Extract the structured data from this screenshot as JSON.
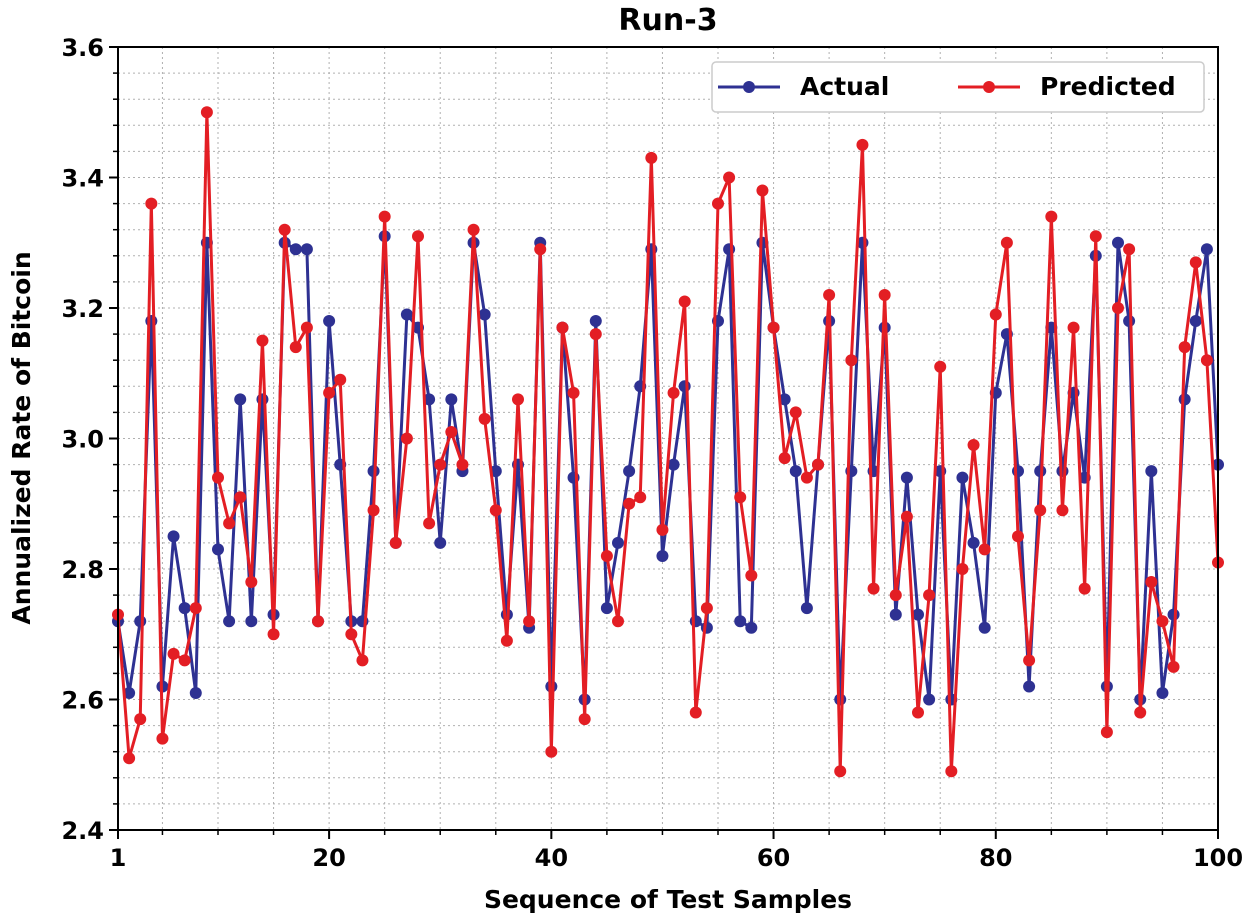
{
  "chart_data": {
    "type": "line",
    "title": "Run-3",
    "xlabel": "Sequence of Test Samples",
    "ylabel": "Annualized Rate of Bitcoin",
    "xlim": [
      1,
      100
    ],
    "ylim": [
      2.4,
      3.6
    ],
    "xticks": [
      1,
      20,
      40,
      60,
      80,
      100
    ],
    "xtick_labels": [
      "1",
      "20",
      "40",
      "60",
      "80",
      "100"
    ],
    "yticks": [
      2.4,
      2.6,
      2.8,
      3.0,
      3.2,
      3.4,
      3.6
    ],
    "ytick_labels": [
      "2.4",
      "2.6",
      "2.8",
      "3.0",
      "3.2",
      "3.4",
      "3.6"
    ],
    "grid": true,
    "legend_position": "top-right",
    "x": [
      1,
      2,
      3,
      4,
      5,
      6,
      7,
      8,
      9,
      10,
      11,
      12,
      13,
      14,
      15,
      16,
      17,
      18,
      19,
      20,
      21,
      22,
      23,
      24,
      25,
      26,
      27,
      28,
      29,
      30,
      31,
      32,
      33,
      34,
      35,
      36,
      37,
      38,
      39,
      40,
      41,
      42,
      43,
      44,
      45,
      46,
      47,
      48,
      49,
      50,
      51,
      52,
      53,
      54,
      55,
      56,
      57,
      58,
      59,
      60,
      61,
      62,
      63,
      64,
      65,
      66,
      67,
      68,
      69,
      70,
      71,
      72,
      73,
      74,
      75,
      76,
      77,
      78,
      79,
      80,
      81,
      82,
      83,
      84,
      85,
      86,
      87,
      88,
      89,
      90,
      91,
      92,
      93,
      94,
      95,
      96,
      97,
      98,
      99,
      100
    ],
    "series": [
      {
        "name": "Actual",
        "color": "#2e3192",
        "values": [
          2.72,
          2.61,
          2.72,
          3.18,
          2.62,
          2.85,
          2.74,
          2.61,
          3.3,
          2.83,
          2.72,
          3.06,
          2.72,
          3.06,
          2.73,
          3.3,
          3.29,
          3.29,
          2.72,
          3.18,
          2.96,
          2.72,
          2.72,
          2.95,
          3.31,
          2.84,
          3.19,
          3.17,
          3.06,
          2.84,
          3.06,
          2.95,
          3.3,
          3.19,
          2.95,
          2.73,
          2.96,
          2.71,
          3.3,
          2.62,
          3.17,
          2.94,
          2.6,
          3.18,
          2.74,
          2.84,
          2.95,
          3.08,
          3.29,
          2.82,
          2.96,
          3.08,
          2.72,
          2.71,
          3.18,
          3.29,
          2.72,
          2.71,
          3.3,
          3.17,
          3.06,
          2.95,
          2.74,
          2.96,
          3.18,
          2.6,
          2.95,
          3.3,
          2.95,
          3.17,
          2.73,
          2.94,
          2.73,
          2.6,
          2.95,
          2.6,
          2.94,
          2.84,
          2.71,
          3.07,
          3.16,
          2.95,
          2.62,
          2.95,
          3.17,
          2.95,
          3.07,
          2.94,
          3.28,
          2.62,
          3.3,
          3.18,
          2.6,
          2.95,
          2.61,
          2.73,
          3.06,
          3.18,
          3.29,
          2.96
        ]
      },
      {
        "name": "Predicted",
        "color": "#e31e24",
        "values": [
          2.73,
          2.51,
          2.57,
          3.36,
          2.54,
          2.67,
          2.66,
          2.74,
          3.5,
          2.94,
          2.87,
          2.91,
          2.78,
          3.15,
          2.7,
          3.32,
          3.14,
          3.17,
          2.72,
          3.07,
          3.09,
          2.7,
          2.66,
          2.89,
          3.34,
          2.84,
          3.0,
          3.31,
          2.87,
          2.96,
          3.01,
          2.96,
          3.32,
          3.03,
          2.89,
          2.69,
          3.06,
          2.72,
          3.29,
          2.52,
          3.17,
          3.07,
          2.57,
          3.16,
          2.82,
          2.72,
          2.9,
          2.91,
          3.43,
          2.86,
          3.07,
          3.21,
          2.58,
          2.74,
          3.36,
          3.4,
          2.91,
          2.79,
          3.38,
          3.17,
          2.97,
          3.04,
          2.94,
          2.96,
          3.22,
          2.49,
          3.12,
          3.45,
          2.77,
          3.22,
          2.76,
          2.88,
          2.58,
          2.76,
          3.11,
          2.49,
          2.8,
          2.99,
          2.83,
          3.19,
          3.3,
          2.85,
          2.66,
          2.89,
          3.34,
          2.89,
          3.17,
          2.77,
          3.31,
          2.55,
          3.2,
          3.29,
          2.58,
          2.78,
          2.72,
          2.65,
          3.14,
          3.27,
          3.12,
          2.81
        ]
      }
    ]
  }
}
